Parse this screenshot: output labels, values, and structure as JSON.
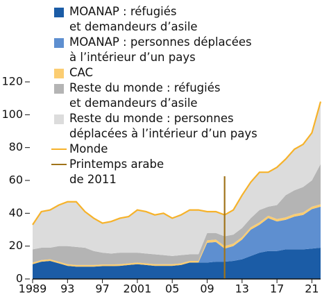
{
  "chart_data": {
    "type": "stacked_area",
    "x": [
      1989,
      1990,
      1991,
      1992,
      1993,
      1994,
      1995,
      1996,
      1997,
      1998,
      1999,
      2000,
      2001,
      2002,
      2003,
      2004,
      2005,
      2006,
      2007,
      2008,
      2009,
      2010,
      2011,
      2012,
      2013,
      2014,
      2015,
      2016,
      2017,
      2018,
      2019,
      2020,
      2021,
      2022
    ],
    "series": [
      {
        "name": "MOANAP : réfugiés\net demandeurs d’asile",
        "color": "#1b5ca6",
        "values": [
          9,
          10.5,
          11,
          9.5,
          8,
          7.5,
          7.5,
          7.5,
          7.8,
          7.8,
          8,
          8.5,
          9,
          8.5,
          8,
          8,
          8,
          8.5,
          10,
          10,
          10,
          10.5,
          10.5,
          11,
          12,
          14,
          16,
          17,
          17,
          18,
          18,
          18,
          18.5,
          19
        ]
      },
      {
        "name": "MOANAP : personnes déplacées\nà l’intérieur d’un pays",
        "color": "#5e8fd0",
        "values": [
          0,
          0,
          0,
          0,
          0,
          0,
          0,
          0,
          0,
          0,
          0,
          0,
          0,
          0,
          0,
          0,
          0,
          0,
          0,
          0,
          12,
          12,
          8,
          9,
          12,
          16,
          17,
          20,
          18,
          18,
          20,
          21,
          24,
          25
        ]
      },
      {
        "name": "CAC",
        "color": "#fbcd72",
        "values": [
          1,
          1,
          1,
          1,
          1,
          1,
          1,
          1,
          1,
          1,
          1,
          1,
          1,
          1,
          1,
          1,
          1,
          1,
          1,
          1,
          1.5,
          1.5,
          1.5,
          1.5,
          1.5,
          1.5,
          1.5,
          1.5,
          1.5,
          1.5,
          1.5,
          1.5,
          1.5,
          1.5
        ]
      },
      {
        "name": "Reste du monde : réfugiés\net demandeurs d’asile",
        "color": "#b4b4b4",
        "values": [
          8,
          7.5,
          7,
          9.5,
          11,
          11,
          10.5,
          8.5,
          7.2,
          6.7,
          7,
          6.5,
          6,
          6,
          6,
          5.5,
          5,
          5,
          4,
          4,
          4.5,
          4,
          6,
          5.5,
          5.5,
          5.5,
          7.5,
          5.5,
          8.5,
          13.5,
          14.5,
          15.5,
          16,
          24.5
        ]
      },
      {
        "name": "Reste du monde : personnes\ndéplacées à l’intérieur d’un pays",
        "color": "#dcdcdc",
        "values": [
          15,
          22,
          23,
          25,
          27,
          27.5,
          22,
          20,
          18,
          19.5,
          21,
          22,
          26,
          25.5,
          24,
          25.5,
          23,
          24.5,
          27,
          27,
          13,
          13,
          13,
          15,
          20,
          22,
          23,
          21,
          23,
          22,
          25,
          26,
          29,
          38
        ]
      },
      {
        "name": "Monde",
        "color": "#f6b22a",
        "type": "line",
        "values": [
          33,
          41,
          42,
          45,
          47,
          47,
          41,
          37,
          34,
          35,
          37,
          38,
          42,
          41,
          39,
          40,
          37,
          39,
          42,
          42,
          41,
          41,
          39,
          42,
          51,
          59,
          65,
          65,
          68,
          73,
          79,
          82,
          89,
          108
        ]
      }
    ],
    "event": {
      "name": "Printemps arabe\nde 2011",
      "x": 2011,
      "color": "#a0731a"
    },
    "xlim": [
      1989,
      2022
    ],
    "xticks": [
      1989,
      {
        "value": 1993,
        "label": "93"
      },
      {
        "value": 1997,
        "label": "97"
      },
      2001,
      {
        "value": 2005,
        "label": "05"
      },
      {
        "value": 2009,
        "label": "09"
      },
      {
        "value": 2013,
        "label": "13"
      },
      {
        "value": 2017,
        "label": "17"
      },
      {
        "value": 2021,
        "label": "21"
      }
    ],
    "ylim": [
      0,
      120
    ],
    "yticks": [
      0,
      20,
      40,
      60,
      80,
      100,
      120
    ]
  }
}
